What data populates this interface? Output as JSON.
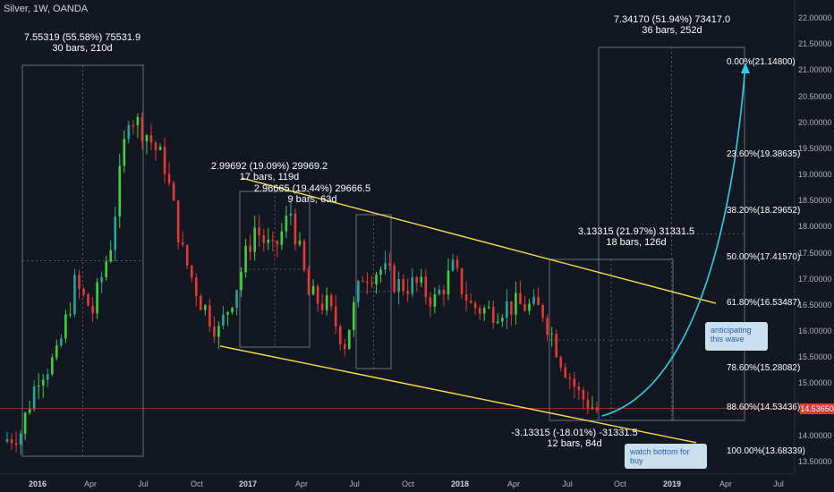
{
  "header": {
    "title": "Silver, 1W, OANDA"
  },
  "y_axis_labels": [
    "22.00000",
    "21.50000",
    "21.00000",
    "20.50000",
    "20.00000",
    "19.50000",
    "19.00000",
    "18.50000",
    "18.00000",
    "17.50000",
    "17.00000",
    "16.50000",
    "16.00000",
    "15.50000",
    "15.00000",
    "14.50000",
    "14.00000",
    "13.50000"
  ],
  "x_axis_labels": [
    {
      "label": "2016",
      "bold": true
    },
    {
      "label": "Apr",
      "bold": false
    },
    {
      "label": "Jul",
      "bold": false
    },
    {
      "label": "Oct",
      "bold": false
    },
    {
      "label": "2017",
      "bold": true
    },
    {
      "label": "Apr",
      "bold": false
    },
    {
      "label": "Jul",
      "bold": false
    },
    {
      "label": "Oct",
      "bold": false
    },
    {
      "label": "2018",
      "bold": true
    },
    {
      "label": "Apr",
      "bold": false
    },
    {
      "label": "Jul",
      "bold": false
    },
    {
      "label": "Oct",
      "bold": false
    },
    {
      "label": "2019",
      "bold": true
    },
    {
      "label": "Apr",
      "bold": false
    },
    {
      "label": "Jul",
      "bold": false
    }
  ],
  "current_price": "14.53650",
  "measurements": [
    {
      "line1": "7.55319 (55.58%) 75531.9",
      "line2": "30 bars, 210d"
    },
    {
      "line1": "2.99692 (19.09%) 29969.2",
      "line2": "17 bars, 119d"
    },
    {
      "line1": "2.96665 (19.44%) 29666.5",
      "line2": "9 bars, 63d"
    },
    {
      "line1": "3.13315 (21.97%) 31331.5",
      "line2": "18 bars, 126d"
    },
    {
      "line1": "7.34170 (51.94%) 73417.0",
      "line2": "36 bars, 252d"
    },
    {
      "line1": "-3.13315 (-18.01%) -31331.5",
      "line2": "12 bars, 84d"
    }
  ],
  "fib_levels": [
    {
      "label": "0.00%(21.14800)",
      "price": 21.148
    },
    {
      "label": "23.60%(19.38635)",
      "price": 19.38635
    },
    {
      "label": "38.20%(18.29652)",
      "price": 18.29652
    },
    {
      "label": "50.00%(17.41570)",
      "price": 17.4157
    },
    {
      "label": "61.80%(16.53487)",
      "price": 16.53487
    },
    {
      "label": "78.60%(15.28082)",
      "price": 15.28082
    },
    {
      "label": "88.60%(14.53436)",
      "price": 14.53436
    },
    {
      "label": "100.00%(13.68339)",
      "price": 13.68339
    }
  ],
  "callouts": [
    {
      "text": "anticipating this wave"
    },
    {
      "text": "watch bottom for buy"
    }
  ],
  "colors": {
    "background": "#131722",
    "up": "#26a69a",
    "up_bright": "#3fd13f",
    "down": "#e53935",
    "channel": "#f5e14a",
    "projection": "#29d3e6",
    "price_line": "#e53935"
  },
  "chart_data": {
    "type": "candlestick",
    "title": "Silver, 1W, OANDA",
    "ylim": [
      13.4,
      22.1
    ],
    "grid": false,
    "series": [
      {
        "x": [
          "2015-12",
          "2016-01",
          "2016-02",
          "2016-03",
          "2016-04",
          "2016-05",
          "2016-06",
          "2016-07",
          "2016-08",
          "2016-09",
          "2016-10",
          "2016-11",
          "2016-12",
          "2017-01",
          "2017-02",
          "2017-03",
          "2017-04",
          "2017-05",
          "2017-06",
          "2017-07",
          "2017-08",
          "2017-09",
          "2017-10",
          "2017-11",
          "2017-12",
          "2018-01",
          "2018-02",
          "2018-03",
          "2018-04",
          "2018-05",
          "2018-06",
          "2018-07",
          "2018-08",
          "2018-09"
        ],
        "values": [
          13.9,
          14.1,
          15.2,
          15.5,
          16.9,
          16.4,
          17.7,
          20.2,
          19.8,
          19.2,
          17.5,
          16.6,
          16.0,
          16.9,
          18.0,
          17.5,
          18.3,
          16.7,
          16.5,
          15.8,
          17.1,
          17.2,
          16.9,
          16.9,
          16.6,
          17.2,
          16.5,
          16.4,
          16.5,
          16.5,
          16.4,
          15.5,
          14.8,
          14.5
        ]
      }
    ],
    "channel": {
      "upper": {
        "from": {
          "x": "2017-01",
          "y": 18.95
        },
        "to": {
          "x": "2019-04",
          "y": 16.55
        }
      },
      "lower": {
        "from": {
          "x": "2016-10",
          "y": 15.73
        },
        "to": {
          "x": "2019-02",
          "y": 13.88
        }
      }
    },
    "projection_target": 21.148
  }
}
